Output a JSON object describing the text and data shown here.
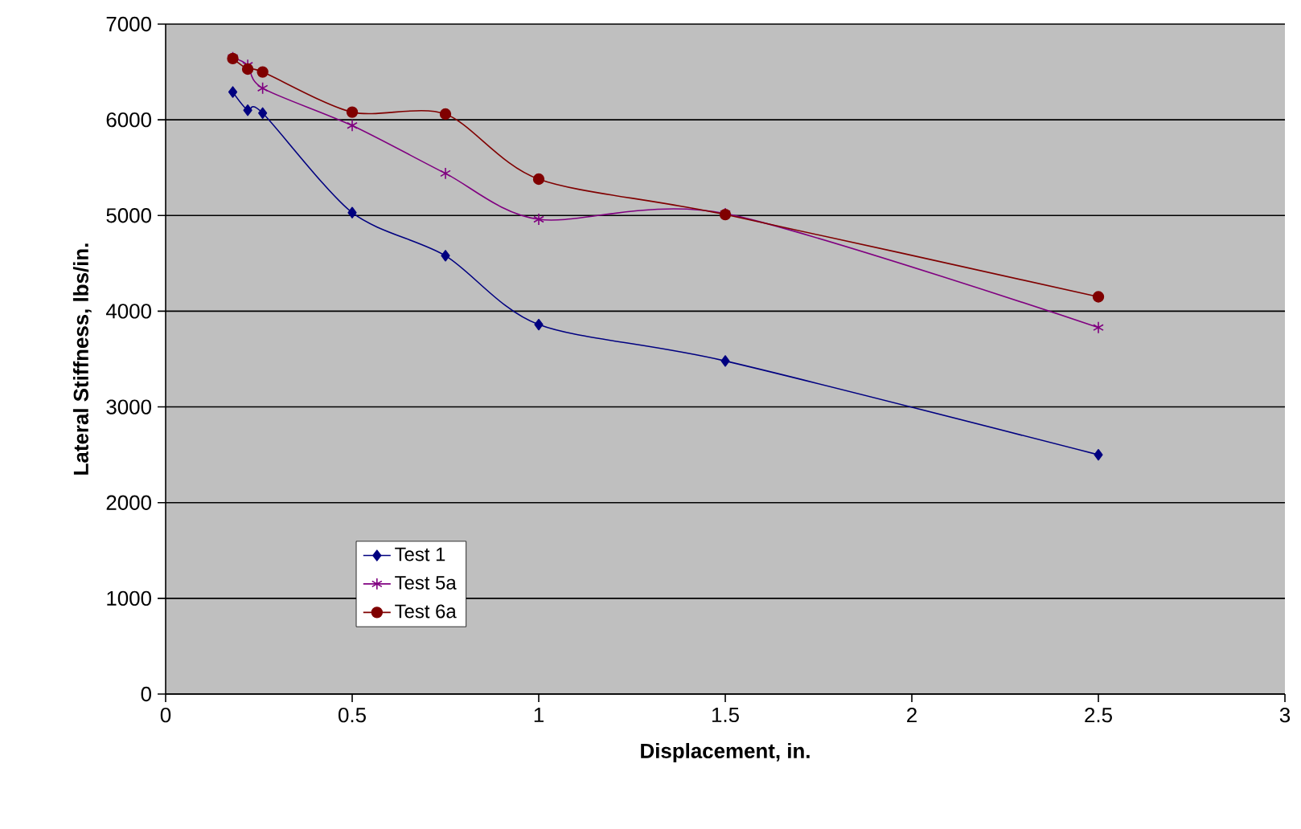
{
  "chart_data": {
    "type": "line",
    "xlabel": "Displacement, in.",
    "ylabel": "Lateral Stiffness, lbs/in.",
    "xlim": [
      0,
      3
    ],
    "xticks": [
      0,
      0.5,
      1,
      1.5,
      2,
      2.5,
      3
    ],
    "ylim": [
      0,
      7000
    ],
    "yticks": [
      0,
      1000,
      2000,
      3000,
      4000,
      5000,
      6000,
      7000
    ],
    "grid": "y",
    "legend": "bottom left",
    "series": [
      {
        "name": "Test 1",
        "color": "#000080",
        "marker": "diamond",
        "x": [
          0.18,
          0.22,
          0.26,
          0.5,
          0.75,
          1,
          1.5,
          2.5
        ],
        "values": [
          6290,
          6100,
          6070,
          5030,
          4580,
          3860,
          3480,
          2500
        ]
      },
      {
        "name": "Test 5a",
        "color": "#800080",
        "marker": "cross",
        "x": [
          0.18,
          0.22,
          0.26,
          0.5,
          0.75,
          1,
          1.5,
          2.5
        ],
        "values": [
          6650,
          6570,
          6330,
          5940,
          5440,
          4960,
          5020,
          3830
        ]
      },
      {
        "name": "Test 6a",
        "color": "#800000",
        "marker": "circle",
        "x": [
          0.18,
          0.22,
          0.26,
          0.5,
          0.75,
          1,
          1.5,
          2.5
        ],
        "values": [
          6640,
          6530,
          6500,
          6080,
          6060,
          5380,
          5010,
          4150
        ]
      }
    ]
  }
}
